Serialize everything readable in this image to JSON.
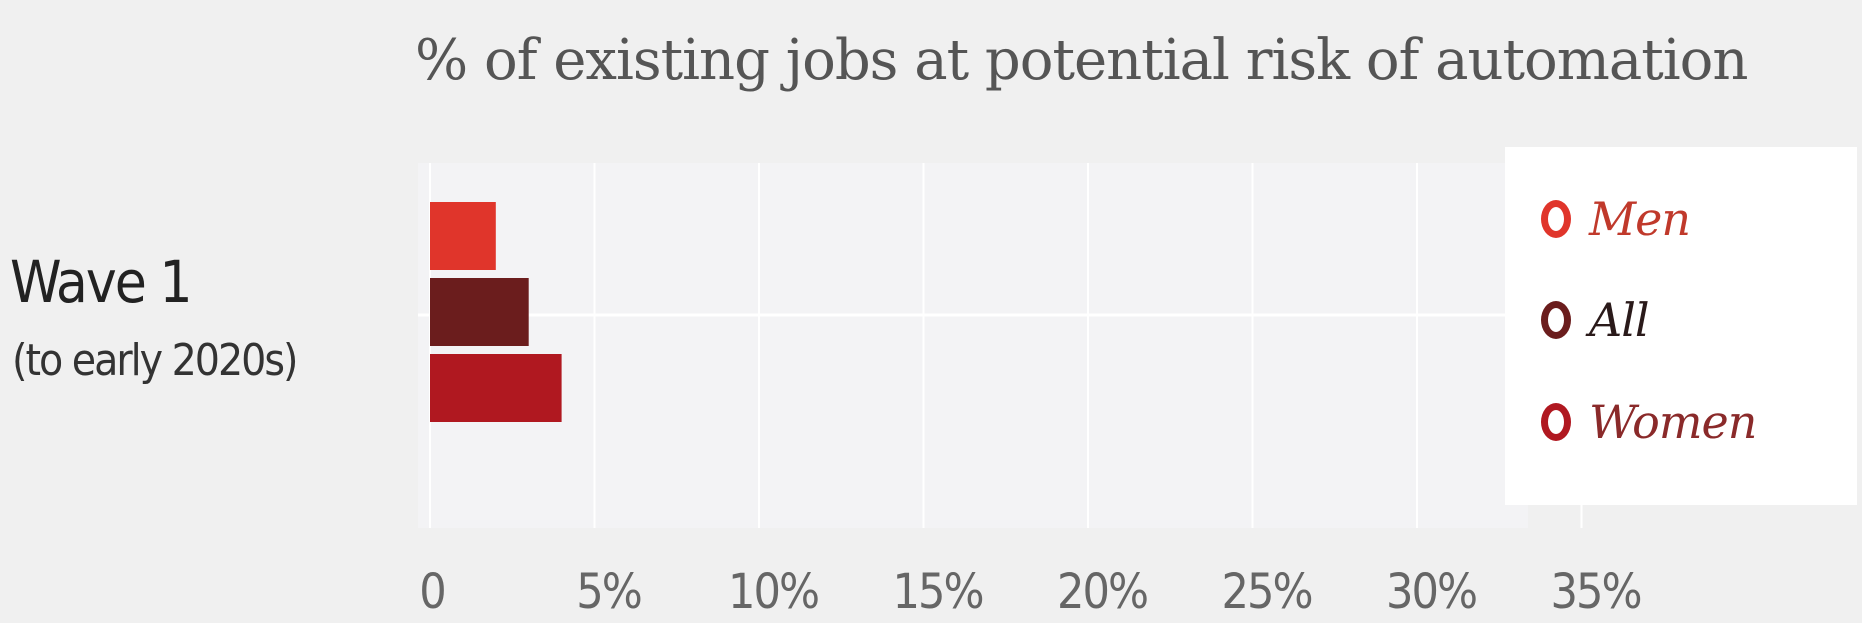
{
  "chart_data": {
    "type": "bar",
    "orientation": "horizontal",
    "title": "% of existing jobs at potential risk of automation",
    "categories": [
      {
        "label": "Wave 1",
        "sublabel": "(to early 2020s)"
      }
    ],
    "series": [
      {
        "name": "Men",
        "values": [
          2
        ],
        "color": "#e0352b",
        "label_color": "#c0392b"
      },
      {
        "name": "All",
        "values": [
          3
        ],
        "color": "#6b1d1d",
        "label_color": "#2a1a1a"
      },
      {
        "name": "Women",
        "values": [
          4
        ],
        "color": "#b01820",
        "label_color": "#8a2a2a"
      }
    ],
    "xlim": [
      0,
      35
    ],
    "xticks": [
      {
        "value": 0,
        "label": "0"
      },
      {
        "value": 5,
        "label": "5%"
      },
      {
        "value": 10,
        "label": "10%"
      },
      {
        "value": 15,
        "label": "15%"
      },
      {
        "value": 20,
        "label": "20%"
      },
      {
        "value": 25,
        "label": "25%"
      },
      {
        "value": 30,
        "label": "30%"
      },
      {
        "value": 35,
        "label": "35%"
      }
    ],
    "grid": true,
    "legend_position": "right"
  }
}
